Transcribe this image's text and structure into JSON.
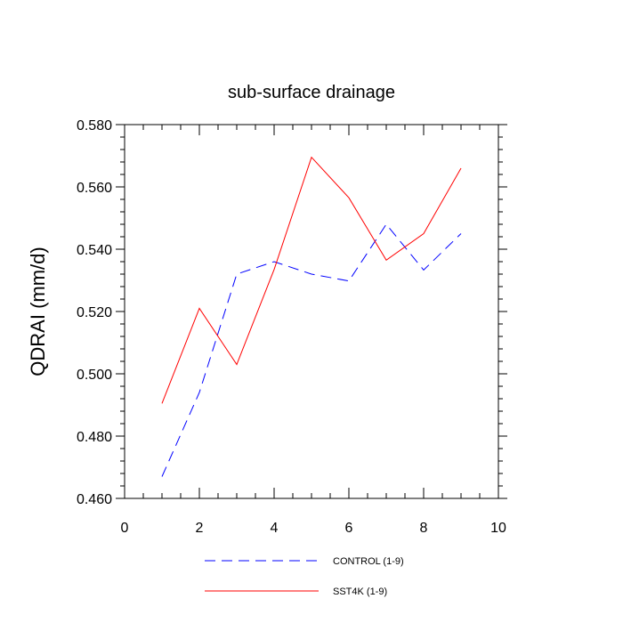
{
  "chart_data": {
    "type": "line",
    "title": "sub-surface drainage",
    "xlabel": "",
    "ylabel": "QDRAI  (mm/d)",
    "xlim": [
      0,
      10
    ],
    "ylim": [
      0.46,
      0.58
    ],
    "x_ticks": [
      0,
      2,
      4,
      6,
      8,
      10
    ],
    "x_tick_labels": [
      "0",
      "2",
      "4",
      "6",
      "8",
      "10"
    ],
    "y_ticks": [
      0.46,
      0.48,
      0.5,
      0.52,
      0.54,
      0.56,
      0.58
    ],
    "y_tick_labels": [
      "0.460",
      "0.480",
      "0.500",
      "0.520",
      "0.540",
      "0.560",
      "0.580"
    ],
    "grid": false,
    "legend": "bottom",
    "series": [
      {
        "name": "CONTROL (1-9)",
        "color": "#0000ff",
        "style": "dashed",
        "x": [
          1,
          2,
          3,
          4,
          5,
          6,
          7,
          8,
          9
        ],
        "values": [
          0.467,
          0.494,
          0.532,
          0.536,
          0.532,
          0.5298,
          0.548,
          0.5333,
          0.545
        ]
      },
      {
        "name": "SST4K (1-9)",
        "color": "#ff0000",
        "style": "solid",
        "x": [
          1,
          2,
          3,
          4,
          5,
          6,
          7,
          8,
          9
        ],
        "values": [
          0.4905,
          0.521,
          0.503,
          0.5335,
          0.5695,
          0.5565,
          0.5365,
          0.545,
          0.566
        ]
      }
    ]
  }
}
